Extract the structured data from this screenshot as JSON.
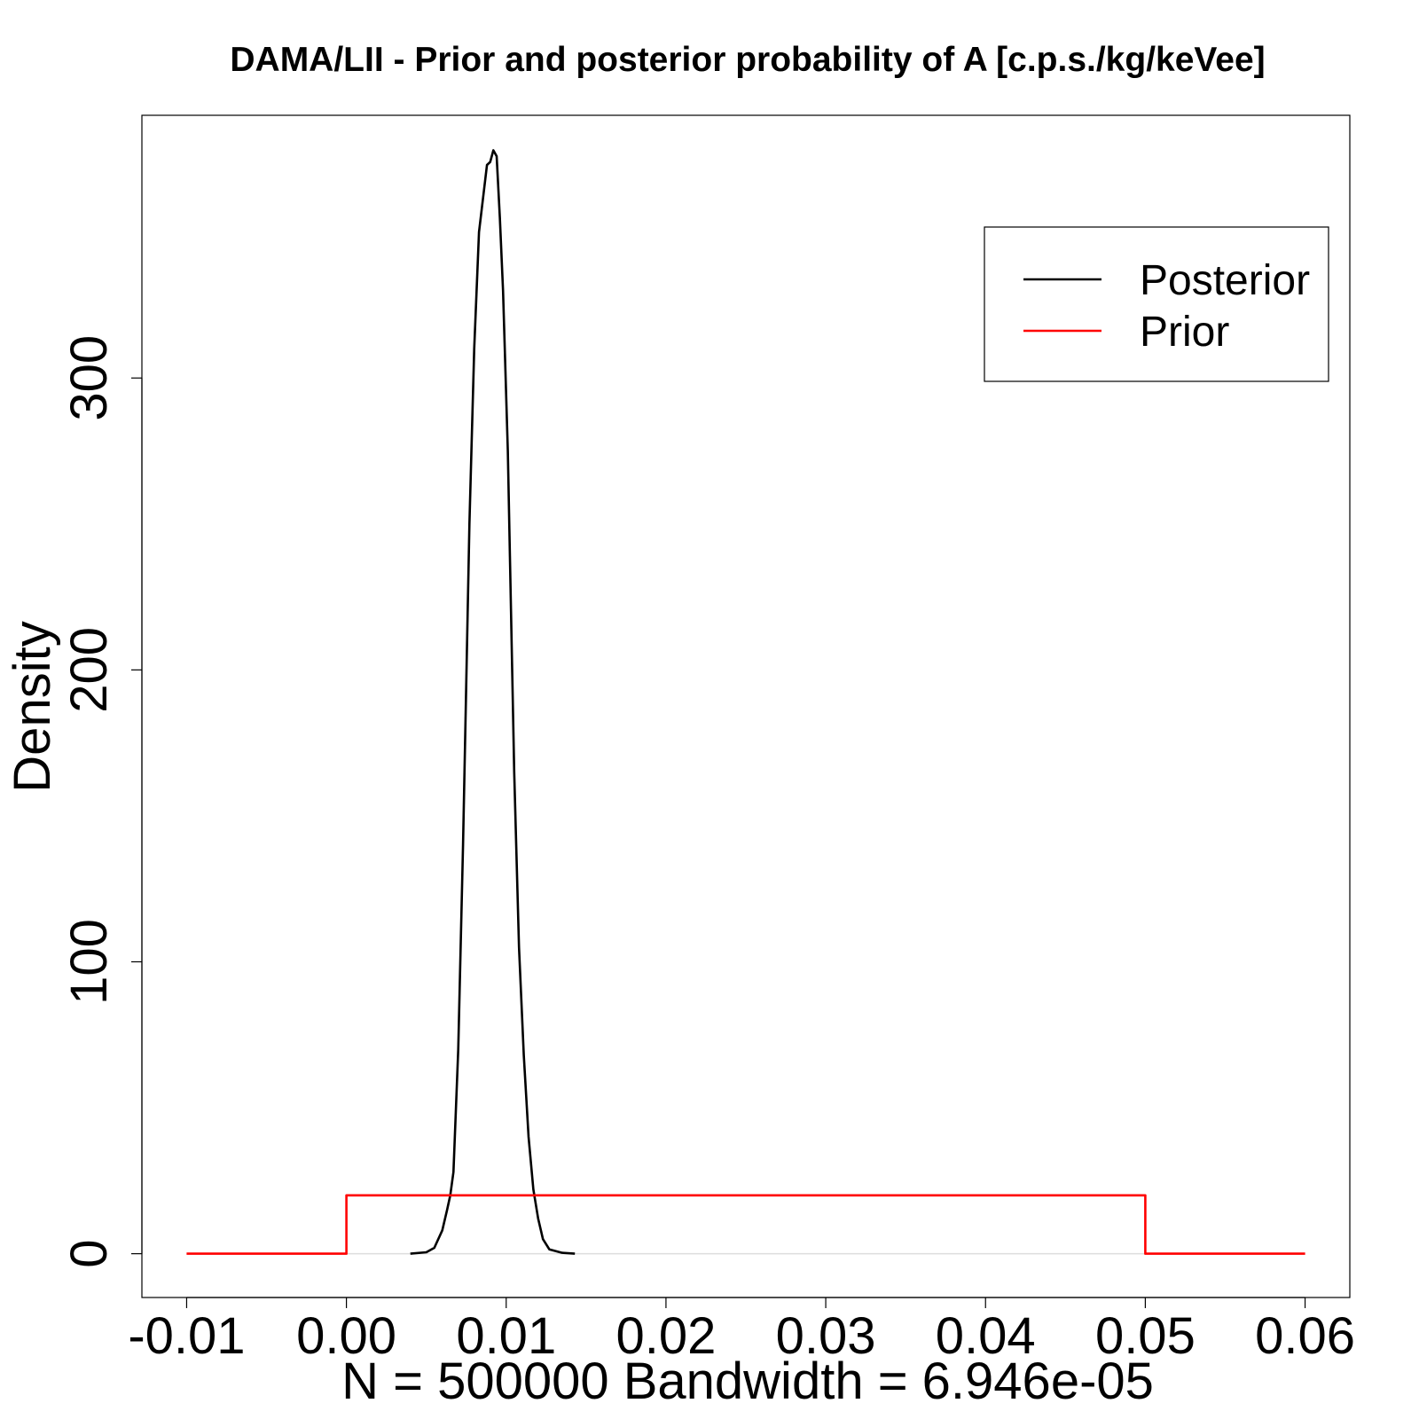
{
  "chart_data": {
    "type": "line",
    "title": "DAMA/LII - Prior and posterior probability of A [c.p.s./kg/keVee]",
    "xlabel": "N = 500000   Bandwidth = 6.946e-05",
    "ylabel": "Density",
    "xlim": [
      -0.0128,
      0.0628
    ],
    "ylim": [
      -15,
      390
    ],
    "x_ticks": [
      -0.01,
      0.0,
      0.01,
      0.02,
      0.03,
      0.04,
      0.05,
      0.06
    ],
    "x_tick_labels": [
      "-0.01",
      "0.00",
      "0.01",
      "0.02",
      "0.03",
      "0.04",
      "0.05",
      "0.06"
    ],
    "y_ticks": [
      0,
      100,
      200,
      300
    ],
    "y_tick_labels": [
      "0",
      "100",
      "200",
      "300"
    ],
    "legend": {
      "position": "top-right",
      "entries": [
        {
          "label": "Posterior",
          "color": "#000000"
        },
        {
          "label": "Prior",
          "color": "#ff0000"
        }
      ]
    },
    "series": [
      {
        "name": "Posterior",
        "color": "#000000",
        "points": [
          [
            0.004,
            0
          ],
          [
            0.005,
            0.5
          ],
          [
            0.0055,
            2
          ],
          [
            0.006,
            8
          ],
          [
            0.0063,
            15
          ],
          [
            0.0065,
            20
          ],
          [
            0.0067,
            28
          ],
          [
            0.007,
            70
          ],
          [
            0.0073,
            140
          ],
          [
            0.0077,
            250
          ],
          [
            0.008,
            310
          ],
          [
            0.0083,
            350
          ],
          [
            0.0088,
            373
          ],
          [
            0.009,
            374
          ],
          [
            0.0092,
            378
          ],
          [
            0.0094,
            376
          ],
          [
            0.0096,
            355
          ],
          [
            0.0098,
            330
          ],
          [
            0.0101,
            275
          ],
          [
            0.0105,
            165
          ],
          [
            0.0108,
            105
          ],
          [
            0.0111,
            68
          ],
          [
            0.0114,
            40
          ],
          [
            0.0117,
            22
          ],
          [
            0.012,
            12
          ],
          [
            0.0123,
            5
          ],
          [
            0.0127,
            1.5
          ],
          [
            0.0135,
            0.3
          ],
          [
            0.0143,
            0
          ]
        ]
      },
      {
        "name": "Prior",
        "color": "#ff0000",
        "points": [
          [
            -0.01,
            0
          ],
          [
            0.0,
            0
          ],
          [
            0.0,
            20
          ],
          [
            0.05,
            20
          ],
          [
            0.05,
            0
          ],
          [
            0.06,
            0
          ]
        ]
      }
    ]
  }
}
